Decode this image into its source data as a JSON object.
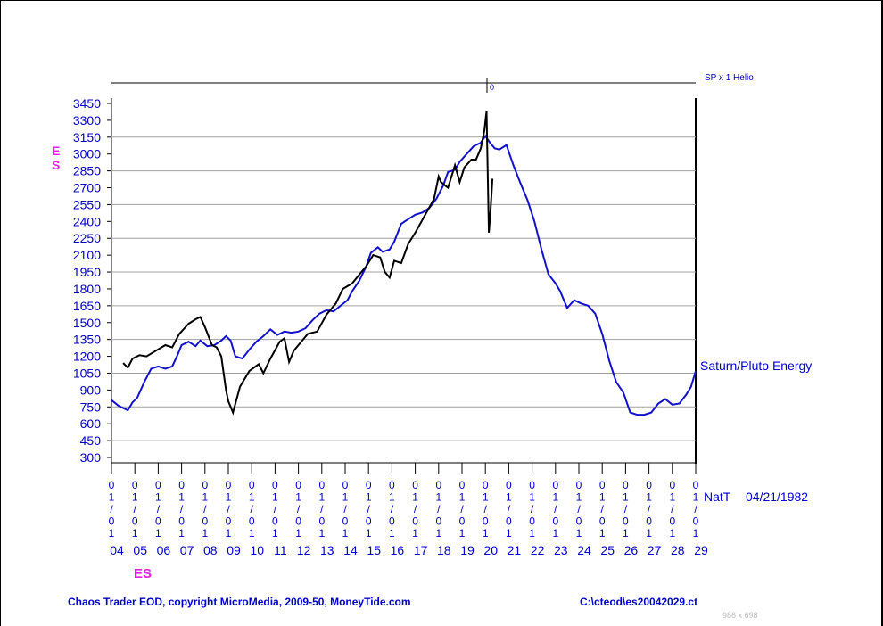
{
  "chart_data": {
    "type": "line",
    "top_scale_label": "SP x 1 Helio",
    "top_marker_label": "0",
    "ylabel_top": "E",
    "ylabel_bottom": "S",
    "xlabel": "ES",
    "natt_label": "NatT",
    "natt_date": "04/21/1982",
    "ylim": [
      300,
      3450
    ],
    "yticks": [
      300,
      450,
      600,
      750,
      900,
      1050,
      1200,
      1350,
      1500,
      1650,
      1800,
      1950,
      2100,
      2250,
      2400,
      2550,
      2700,
      2850,
      3000,
      3150,
      3300,
      3450
    ],
    "xlim": [
      2004,
      2029
    ],
    "xtick_date_chars": [
      "0",
      "1",
      "/",
      "0",
      "1"
    ],
    "xtick_years": [
      "04",
      "05",
      "06",
      "07",
      "08",
      "09",
      "10",
      "11",
      "12",
      "13",
      "14",
      "15",
      "16",
      "17",
      "18",
      "19",
      "20",
      "21",
      "22",
      "23",
      "24",
      "25",
      "26",
      "27",
      "28",
      "29"
    ],
    "grid": "horizontal",
    "series": [
      {
        "name": "ES",
        "color": "#000000",
        "x": [
          2004.5,
          2004.7,
          2004.9,
          2005.2,
          2005.5,
          2005.9,
          2006.3,
          2006.6,
          2006.9,
          2007.3,
          2007.6,
          2007.8,
          2008.0,
          2008.3,
          2008.5,
          2008.7,
          2008.9,
          2009.0,
          2009.2,
          2009.5,
          2009.9,
          2010.3,
          2010.5,
          2010.8,
          2011.2,
          2011.4,
          2011.6,
          2011.8,
          2012.0,
          2012.4,
          2012.8,
          2013.2,
          2013.6,
          2013.9,
          2014.3,
          2014.7,
          2014.9,
          2015.2,
          2015.5,
          2015.7,
          2015.9,
          2016.1,
          2016.4,
          2016.7,
          2017.0,
          2017.4,
          2017.8,
          2018.0,
          2018.1,
          2018.4,
          2018.7,
          2018.9,
          2019.1,
          2019.4,
          2019.6,
          2019.8,
          2019.95,
          2020.05,
          2020.15,
          2020.22,
          2020.3
        ],
        "values": [
          1140,
          1100,
          1180,
          1210,
          1200,
          1250,
          1300,
          1280,
          1400,
          1490,
          1530,
          1550,
          1460,
          1300,
          1280,
          1200,
          900,
          800,
          700,
          930,
          1070,
          1130,
          1050,
          1180,
          1330,
          1360,
          1150,
          1250,
          1300,
          1400,
          1420,
          1570,
          1670,
          1800,
          1850,
          1950,
          2000,
          2100,
          2080,
          1950,
          1900,
          2050,
          2030,
          2200,
          2300,
          2450,
          2600,
          2800,
          2750,
          2700,
          2900,
          2750,
          2880,
          2950,
          2950,
          3050,
          3200,
          3380,
          2300,
          2500,
          2780
        ]
      },
      {
        "name": "Saturn/Pluto Energy",
        "color": "#1111cc",
        "x": [
          2004.0,
          2004.3,
          2004.7,
          2004.9,
          2005.1,
          2005.4,
          2005.7,
          2006.0,
          2006.3,
          2006.6,
          2006.8,
          2007.0,
          2007.3,
          2007.6,
          2007.8,
          2008.1,
          2008.4,
          2008.7,
          2008.9,
          2009.1,
          2009.3,
          2009.6,
          2009.9,
          2010.2,
          2010.5,
          2010.8,
          2011.1,
          2011.4,
          2011.7,
          2012.0,
          2012.3,
          2012.6,
          2012.9,
          2013.2,
          2013.5,
          2013.8,
          2014.1,
          2014.3,
          2014.6,
          2014.9,
          2015.1,
          2015.4,
          2015.6,
          2015.9,
          2016.1,
          2016.4,
          2016.7,
          2017.0,
          2017.3,
          2017.6,
          2017.9,
          2018.2,
          2018.4,
          2018.7,
          2018.9,
          2019.2,
          2019.5,
          2019.8,
          2020.0,
          2020.2,
          2020.4,
          2020.6,
          2020.9,
          2021.2,
          2021.5,
          2021.8,
          2022.1,
          2022.4,
          2022.7,
          2023.0,
          2023.2,
          2023.5,
          2023.8,
          2024.1,
          2024.4,
          2024.7,
          2025.0,
          2025.3,
          2025.6,
          2025.9,
          2026.2,
          2026.5,
          2026.8,
          2027.1,
          2027.4,
          2027.7,
          2028.0,
          2028.3,
          2028.6,
          2028.8,
          2029.0
        ],
        "values": [
          810,
          760,
          720,
          790,
          830,
          970,
          1090,
          1110,
          1090,
          1110,
          1200,
          1300,
          1330,
          1290,
          1340,
          1290,
          1300,
          1340,
          1380,
          1340,
          1200,
          1180,
          1260,
          1330,
          1380,
          1440,
          1390,
          1420,
          1410,
          1420,
          1450,
          1520,
          1580,
          1610,
          1600,
          1650,
          1700,
          1780,
          1870,
          2000,
          2120,
          2170,
          2130,
          2150,
          2220,
          2380,
          2420,
          2460,
          2480,
          2520,
          2600,
          2720,
          2840,
          2860,
          2930,
          3000,
          3070,
          3100,
          3160,
          3100,
          3050,
          3040,
          3080,
          2900,
          2740,
          2590,
          2400,
          2150,
          1930,
          1850,
          1780,
          1630,
          1700,
          1670,
          1650,
          1580,
          1400,
          1160,
          970,
          880,
          700,
          680,
          680,
          700,
          780,
          820,
          770,
          780,
          860,
          930,
          1070
        ]
      }
    ]
  },
  "footer": {
    "copyright": "Chaos Trader EOD, copyright MicroMedia, 2009-50, MoneyTide.com",
    "file_path": "C:\\cteod\\es20042029.ct",
    "image_size": "986 x 698"
  }
}
